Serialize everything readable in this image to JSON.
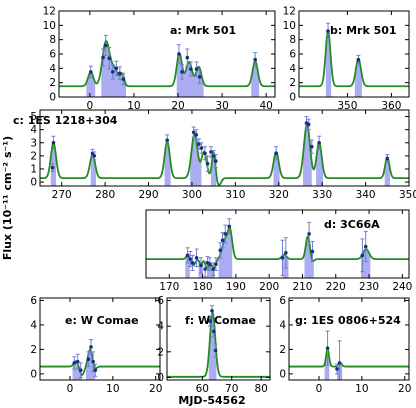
{
  "figure": {
    "ylabel": "Flux (10⁻¹¹ cm⁻² s⁻¹)",
    "xlabel": "MJD-54562"
  },
  "colors": {
    "model": "#228B22",
    "band": "#9E9EF0",
    "point": "#1a2f80",
    "error": "#6f7fd0"
  },
  "chart_data": [
    {
      "type": "line",
      "name": "a",
      "label": "a: Mrk 501",
      "xlim": [
        -7,
        42
      ],
      "ylim": [
        0,
        12
      ],
      "xticks": [
        0,
        10,
        20,
        30,
        40
      ],
      "yticks": [
        0,
        2,
        4,
        6,
        8,
        10,
        12
      ],
      "baseline": 1.5,
      "bands": [
        [
          -0.8,
          1.2
        ],
        [
          2.6,
          8.2
        ],
        [
          19.7,
          25.8
        ],
        [
          36.6,
          38.4
        ]
      ],
      "points": [
        [
          0.2,
          3.5,
          0.8
        ],
        [
          3.0,
          5.5,
          1.2
        ],
        [
          3.6,
          7.2,
          1.4
        ],
        [
          4.4,
          5.4,
          1.5
        ],
        [
          5.2,
          3.5,
          1.0
        ],
        [
          6.0,
          4.0,
          1.0
        ],
        [
          6.8,
          3.3,
          0.9
        ],
        [
          7.6,
          2.5,
          0.8
        ],
        [
          20.2,
          6.0,
          1.3
        ],
        [
          20.9,
          3.5,
          1.0
        ],
        [
          22.1,
          5.5,
          1.2
        ],
        [
          22.9,
          3.9,
          1.0
        ],
        [
          24.2,
          3.9,
          1.0
        ],
        [
          24.9,
          2.8,
          0.9
        ],
        [
          37.5,
          5.2,
          1.0
        ]
      ],
      "peaks": [
        [
          0.2,
          2.0,
          0.6
        ],
        [
          3.6,
          5.9,
          0.8
        ],
        [
          5.5,
          2.4,
          1.0
        ],
        [
          7.4,
          1.4,
          0.4
        ],
        [
          20.3,
          4.6,
          0.6
        ],
        [
          22.5,
          3.4,
          0.7
        ],
        [
          24.7,
          2.7,
          0.6
        ],
        [
          37.5,
          3.5,
          0.6
        ]
      ]
    },
    {
      "type": "line",
      "name": "b",
      "label": "b: Mrk 501",
      "xlim": [
        339,
        364
      ],
      "ylim": [
        0,
        12
      ],
      "xticks": [
        350,
        360
      ],
      "yticks": [
        0,
        2,
        4,
        6,
        8,
        10,
        12
      ],
      "baseline": 1.5,
      "bands": [
        [
          345.1,
          346.3
        ],
        [
          351.7,
          353.3
        ]
      ],
      "points": [
        [
          345.6,
          9.2,
          1.1
        ],
        [
          352.5,
          5.2,
          0.6
        ]
      ],
      "peaks": [
        [
          345.6,
          7.7,
          0.55
        ],
        [
          352.5,
          3.8,
          0.6
        ]
      ]
    },
    {
      "type": "line",
      "name": "c",
      "label": "c: 1ES 1218+304",
      "xlim": [
        265,
        350
      ],
      "ylim": [
        -0.3,
        5.5
      ],
      "xticks": [
        270,
        280,
        290,
        300,
        310,
        320,
        330,
        340,
        350
      ],
      "yticks": [
        0,
        1,
        2,
        3,
        4,
        5
      ],
      "baseline": 0.3,
      "bands": [
        [
          267.5,
          268.7
        ],
        [
          276.7,
          277.9
        ],
        [
          293.7,
          295.1
        ],
        [
          299.6,
          302.2
        ],
        [
          304.4,
          305.6
        ],
        [
          318.8,
          320.2
        ],
        [
          325.6,
          327.6
        ],
        [
          328.6,
          330.2
        ],
        [
          344.4,
          345.6
        ]
      ],
      "points": [
        [
          268.1,
          3.0,
          0.5
        ],
        [
          267.9,
          1.1,
          0.3
        ],
        [
          277.1,
          2.2,
          0.3
        ],
        [
          277.5,
          2.0,
          0.3
        ],
        [
          294.3,
          3.2,
          0.4
        ],
        [
          300.4,
          3.8,
          0.4
        ],
        [
          301.0,
          3.6,
          0.4
        ],
        [
          301.6,
          2.9,
          0.4
        ],
        [
          302.2,
          2.6,
          0.4
        ],
        [
          303.0,
          2.2,
          0.5
        ],
        [
          303.6,
          1.4,
          0.6
        ],
        [
          304.4,
          2.3,
          0.4
        ],
        [
          305.0,
          2.0,
          0.4
        ],
        [
          305.5,
          1.6,
          0.5
        ],
        [
          319.4,
          2.2,
          0.5
        ],
        [
          326.4,
          4.5,
          0.5
        ],
        [
          326.9,
          4.4,
          0.4
        ],
        [
          327.6,
          2.7,
          0.5
        ],
        [
          329.3,
          3.0,
          0.5
        ],
        [
          345.0,
          1.8,
          0.3
        ]
      ],
      "peaks": [
        [
          268.1,
          2.7,
          0.6
        ],
        [
          277.1,
          1.8,
          0.6
        ],
        [
          294.3,
          2.8,
          0.6
        ],
        [
          300.6,
          3.4,
          0.7
        ],
        [
          302.8,
          2.0,
          0.6
        ],
        [
          305.0,
          2.0,
          0.4
        ],
        [
          306.2,
          -0.55,
          0.5
        ],
        [
          319.4,
          2.0,
          0.6
        ],
        [
          326.5,
          4.1,
          0.7
        ],
        [
          329.3,
          2.7,
          0.6
        ],
        [
          345.0,
          1.6,
          0.5
        ]
      ]
    },
    {
      "type": "line",
      "name": "d",
      "label": "d: 3C66A",
      "xlim": [
        163,
        242
      ],
      "ylim": [
        0,
        5.4
      ],
      "xticks": [
        170,
        180,
        190,
        200,
        210,
        220,
        230,
        240
      ],
      "yticks": [],
      "baseline": 1.5,
      "bands": [
        [
          174.8,
          176.2
        ],
        [
          178.8,
          180.2
        ],
        [
          181.3,
          183.7
        ],
        [
          184.8,
          188.9
        ],
        [
          204.2,
          205.8
        ],
        [
          210.6,
          213.4
        ],
        [
          227.6,
          230.4
        ]
      ],
      "points": [
        [
          175.5,
          1.8,
          0.6
        ],
        [
          176.3,
          1.5,
          0.6
        ],
        [
          177.0,
          1.2,
          0.6
        ],
        [
          178.2,
          1.6,
          0.7
        ],
        [
          179.5,
          1.0,
          0.6
        ],
        [
          180.8,
          0.7,
          0.6
        ],
        [
          181.5,
          1.2,
          0.5
        ],
        [
          182.2,
          1.1,
          0.5
        ],
        [
          183.2,
          0.7,
          0.5
        ],
        [
          184.0,
          1.1,
          0.5
        ],
        [
          185.3,
          2.2,
          0.6
        ],
        [
          186.0,
          3.0,
          0.6
        ],
        [
          186.8,
          3.5,
          0.7
        ],
        [
          188.0,
          4.1,
          0.6
        ],
        [
          204.0,
          1.6,
          1.4
        ],
        [
          205.0,
          2.0,
          1.2
        ],
        [
          212.0,
          3.5,
          0.9
        ],
        [
          213.0,
          2.1,
          0.8
        ],
        [
          228.0,
          1.8,
          1.3
        ],
        [
          229.0,
          2.5,
          1.2
        ]
      ],
      "peaks": [
        [
          175.5,
          0.3,
          0.5
        ],
        [
          177.2,
          -0.5,
          0.6
        ],
        [
          179.5,
          -0.5,
          0.4
        ],
        [
          181.3,
          -0.7,
          0.5
        ],
        [
          182.4,
          -0.4,
          0.4
        ],
        [
          183.5,
          -0.7,
          0.5
        ],
        [
          186.6,
          1.4,
          0.8
        ],
        [
          188.2,
          2.3,
          0.7
        ],
        [
          204.5,
          0.35,
          0.7
        ],
        [
          211.6,
          1.8,
          0.6
        ],
        [
          213.0,
          -0.2,
          0.5
        ],
        [
          229.1,
          0.8,
          0.9
        ]
      ]
    },
    {
      "type": "line",
      "name": "e",
      "label": "e: W Comae",
      "xlim": [
        -7,
        21
      ],
      "ylim": [
        -0.5,
        6.2
      ],
      "xticks": [
        0,
        10,
        20
      ],
      "yticks": [
        0,
        2,
        4,
        6
      ],
      "baseline": 0.6,
      "bands": [
        [
          0.6,
          2.8
        ],
        [
          3.7,
          5.9
        ]
      ],
      "points": [
        [
          1.0,
          0.9,
          0.5
        ],
        [
          1.8,
          1.0,
          0.6
        ],
        [
          2.5,
          0.3,
          0.6
        ],
        [
          4.3,
          1.2,
          0.6
        ],
        [
          4.9,
          2.2,
          0.6
        ],
        [
          5.4,
          1.0,
          0.8
        ],
        [
          5.9,
          0.3,
          0.5
        ]
      ],
      "peaks": [
        [
          1.4,
          0.45,
          0.5
        ],
        [
          2.8,
          -0.7,
          0.5
        ],
        [
          4.7,
          1.4,
          0.5
        ],
        [
          5.8,
          -0.25,
          0.4
        ]
      ]
    },
    {
      "type": "line",
      "name": "f",
      "label": "f: W Comae",
      "xlim": [
        48,
        83
      ],
      "ylim": [
        -0.2,
        6.2
      ],
      "xticks": [
        60,
        70,
        80
      ],
      "yticks": [
        0,
        2,
        4,
        6
      ],
      "baseline": 0.05,
      "bands": [
        [
          62.2,
          64.8
        ]
      ],
      "points": [
        [
          62.6,
          4.4,
          0.4
        ],
        [
          63.3,
          5.2,
          0.4
        ],
        [
          63.9,
          3.6,
          0.4
        ],
        [
          64.5,
          2.1,
          0.5
        ]
      ],
      "peaks": [
        [
          63.5,
          5.0,
          0.9
        ]
      ]
    },
    {
      "type": "line",
      "name": "g",
      "label": "g: 1ES 0806+524",
      "xlim": [
        -7,
        21
      ],
      "ylim": [
        -0.5,
        6.2
      ],
      "xticks": [
        0,
        10,
        20
      ],
      "yticks": [
        0,
        2,
        4,
        6
      ],
      "baseline": 0.6,
      "bands": [
        [
          1.3,
          2.4
        ],
        [
          4.2,
          5.4
        ]
      ],
      "points": [
        [
          2.0,
          2.1,
          1.4
        ],
        [
          4.2,
          0.4,
          0.4
        ],
        [
          4.8,
          0.9,
          1.8
        ]
      ],
      "peaks": [
        [
          2.0,
          1.4,
          0.35
        ],
        [
          4.9,
          0.3,
          0.4
        ]
      ]
    }
  ]
}
